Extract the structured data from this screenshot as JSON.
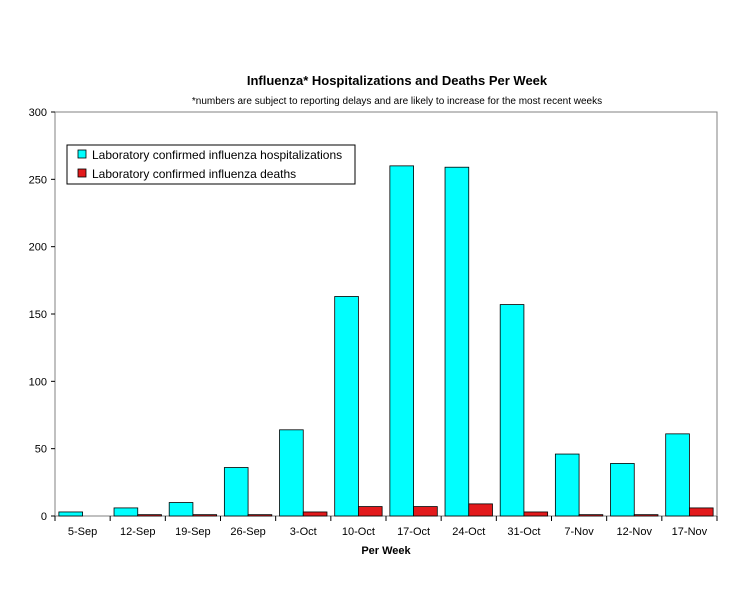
{
  "chart_data": {
    "type": "bar",
    "title": "Influenza* Hospitalizations and Deaths Per Week",
    "subtitle": "*numbers are subject to reporting delays and are likely to increase for the most recent weeks",
    "xlabel": "Per Week",
    "ylabel": "",
    "ylim": [
      0,
      300
    ],
    "yticks": [
      0,
      50,
      100,
      150,
      200,
      250,
      300
    ],
    "grid": false,
    "legend_position": "top-left",
    "categories": [
      "5-Sep",
      "12-Sep",
      "19-Sep",
      "26-Sep",
      "3-Oct",
      "10-Oct",
      "17-Oct",
      "24-Oct",
      "31-Oct",
      "7-Nov",
      "12-Nov",
      "17-Nov"
    ],
    "series": [
      {
        "name": "Laboratory confirmed influenza hospitalizations",
        "color": "#00ffff",
        "values": [
          3,
          6,
          10,
          36,
          64,
          163,
          260,
          259,
          157,
          46,
          39,
          61
        ]
      },
      {
        "name": "Laboratory confirmed influenza deaths",
        "color": "#e31a1c",
        "values": [
          0,
          1,
          1,
          1,
          3,
          7,
          7,
          9,
          3,
          1,
          1,
          6
        ]
      }
    ]
  }
}
